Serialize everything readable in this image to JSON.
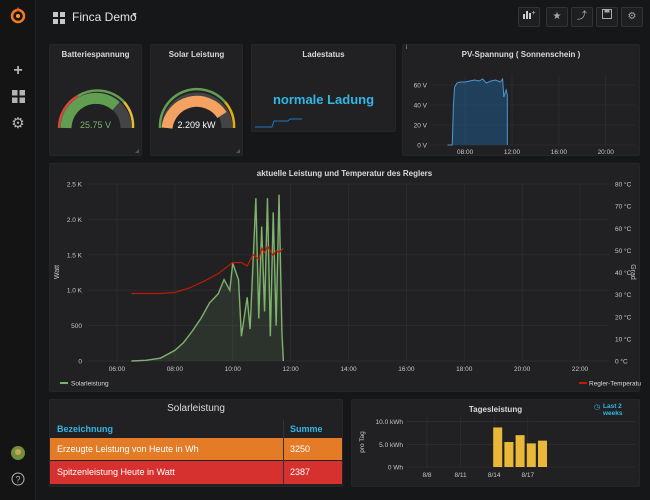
{
  "dashboard": {
    "title": "Finca Demo"
  },
  "colors": {
    "accent": "#33b5e5",
    "green": "#7eb26d",
    "red": "#bf1b00",
    "yellow": "#eab839",
    "orange": "#e77c2c",
    "table_red": "#d6312e"
  },
  "panels": {
    "battery": {
      "title": "Batteriespannung",
      "value": "25.75 V",
      "fill": 0.72
    },
    "solar": {
      "title": "Solar Leistung",
      "value": "2.209 kW",
      "fill": 0.82
    },
    "status": {
      "title": "Ladestatus",
      "value": "normale Ladung"
    },
    "pv": {
      "title": "PV-Spannung ( Sonnenschein )",
      "info": "i"
    },
    "main": {
      "title": "aktuelle Leistung und Temperatur des Reglers"
    },
    "table": {
      "title": "Solarleistung",
      "col1": "Bezeichnung",
      "col2": "Summe",
      "rows": [
        {
          "label": "Erzeugte Leistung von Heute in Wh",
          "value": "3250"
        },
        {
          "label": "Spitzenleistung Heute in Watt",
          "value": "2387"
        }
      ]
    },
    "daily": {
      "title": "Tagesleistung",
      "range": "Last 2 weeks"
    }
  },
  "chart_data": [
    {
      "type": "area",
      "title": "PV-Spannung ( Sonnenschein )",
      "x_ticks": [
        "08:00",
        "12:00",
        "16:00",
        "20:00"
      ],
      "y_ticks": [
        "0 V",
        "20 V",
        "40 V",
        "60 V"
      ],
      "ylim": [
        0,
        70
      ],
      "series": [
        {
          "x": [
            6.5,
            6.9,
            7.0,
            7.1,
            7.3,
            7.6,
            8.0,
            8.4,
            8.8,
            9.2,
            9.5,
            9.8,
            10.2,
            10.6,
            11.0,
            11.2,
            11.3,
            11.5,
            11.6,
            11.6
          ],
          "values": [
            0,
            0,
            40,
            58,
            62,
            63,
            63,
            64,
            65,
            64,
            66,
            62,
            64,
            65,
            63,
            66,
            48,
            55,
            50,
            0
          ]
        }
      ]
    },
    {
      "type": "line",
      "title": "aktuelle Leistung und Temperatur des Reglers",
      "ylabel": "Watt",
      "y2label": "Grad",
      "x_ticks": [
        "06:00",
        "08:00",
        "10:00",
        "12:00",
        "14:00",
        "16:00",
        "18:00",
        "20:00",
        "22:00"
      ],
      "y_ticks": [
        "0",
        "500",
        "1.0 K",
        "1.5 K",
        "2.0 K",
        "2.5 K"
      ],
      "y2_ticks": [
        "0 °C",
        "10 °C",
        "20 °C",
        "30 °C",
        "40 °C",
        "50 °C",
        "60 °C",
        "70 °C",
        "80 °C"
      ],
      "ylim": [
        0,
        2500
      ],
      "y2lim": [
        0,
        80
      ],
      "series": [
        {
          "name": "Solarleistung",
          "x": [
            6.5,
            7.0,
            7.5,
            8.0,
            8.3,
            8.6,
            8.9,
            9.2,
            9.5,
            9.7,
            9.9,
            10.0,
            10.2,
            10.3,
            10.5,
            10.6,
            10.8,
            10.9,
            11.0,
            11.1,
            11.2,
            11.3,
            11.4,
            11.5,
            11.6,
            11.7,
            11.75
          ],
          "values": [
            0,
            10,
            40,
            150,
            260,
            420,
            600,
            820,
            950,
            1150,
            1000,
            1380,
            1150,
            350,
            900,
            450,
            2300,
            600,
            1900,
            700,
            2300,
            350,
            2100,
            500,
            2350,
            400,
            0
          ]
        },
        {
          "name": "Regler-Temperatur",
          "x": [
            6.5,
            7.0,
            7.5,
            8.0,
            8.5,
            9.0,
            9.5,
            10.0,
            10.3,
            10.5,
            10.7,
            10.9,
            11.0,
            11.1,
            11.2,
            11.4,
            11.5,
            11.6,
            11.75
          ],
          "values": [
            30.5,
            30.5,
            30.5,
            31,
            33,
            36,
            39.5,
            44.5,
            44.5,
            43,
            48,
            46,
            51,
            49,
            52,
            47.5,
            50,
            49,
            51
          ]
        }
      ]
    },
    {
      "type": "bar",
      "title": "Tagesleistung",
      "ylabel": "pro Tag",
      "x_ticks": [
        "8/8",
        "8/11",
        "8/14",
        "8/17"
      ],
      "y_ticks": [
        "0 Wh",
        "5.0 kWh",
        "10.0 kWh"
      ],
      "ylim": [
        0,
        11
      ],
      "categories": [
        "8/14",
        "8/15",
        "8/16",
        "8/17",
        "8/18",
        "8/19"
      ],
      "values": [
        8.7,
        5.5,
        7.0,
        5.2,
        5.8,
        0
      ]
    }
  ]
}
